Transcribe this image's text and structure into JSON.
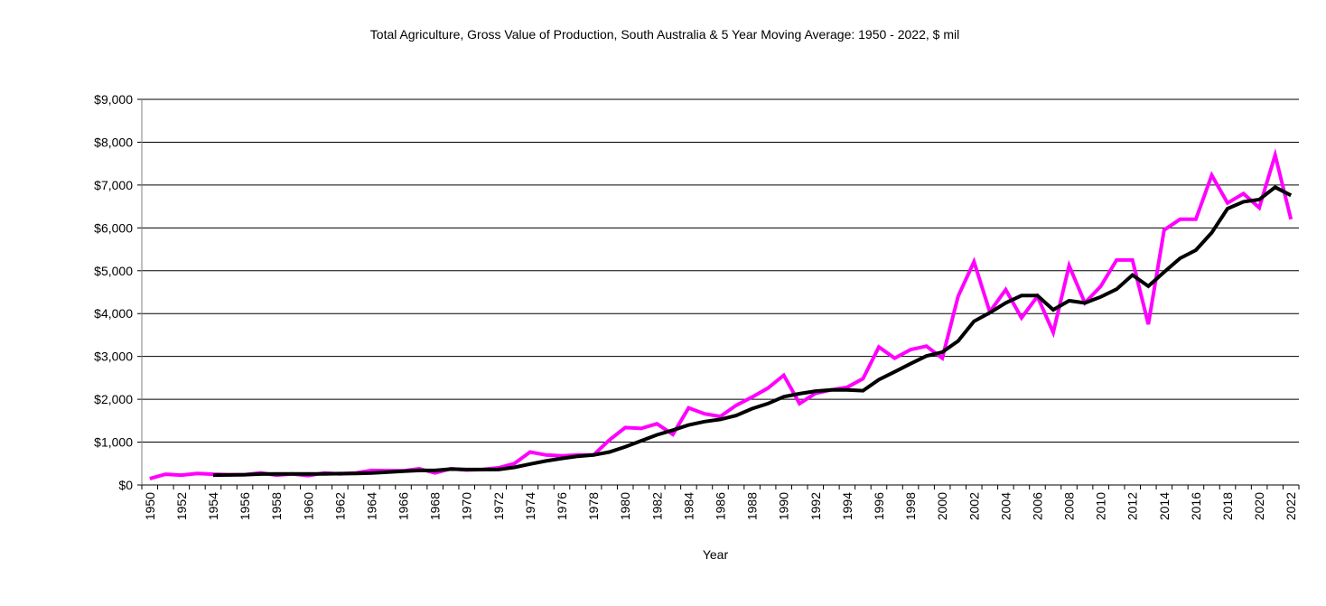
{
  "chart_data": {
    "type": "line",
    "title": "Total Agriculture, Gross Value of Production, South Australia & 5 Year Moving Average: 1950 - 2022, $ mil",
    "xlabel": "Year",
    "ylabel": "",
    "ylim": [
      0,
      9000
    ],
    "yticks": [
      0,
      1000,
      2000,
      3000,
      4000,
      5000,
      6000,
      7000,
      8000,
      9000
    ],
    "ytick_labels": [
      "$0",
      "$1,000",
      "$2,000",
      "$3,000",
      "$4,000",
      "$5,000",
      "$6,000",
      "$7,000",
      "$8,000",
      "$9,000"
    ],
    "xtick_labels": [
      "1950",
      "1952",
      "1954",
      "1956",
      "1958",
      "1960",
      "1962",
      "1964",
      "1966",
      "1968",
      "1970",
      "1972",
      "1974",
      "1976",
      "1978",
      "1980",
      "1982",
      "1984",
      "1986",
      "1988",
      "1990",
      "1992",
      "1994",
      "1996",
      "1998",
      "2000",
      "2002",
      "2004",
      "2006",
      "2008",
      "2010",
      "2012",
      "2014",
      "2016",
      "2018",
      "2020",
      "2022"
    ],
    "grid": true,
    "x_start": 1950,
    "x_end": 2022,
    "series": [
      {
        "name": "Gross Value of Production",
        "color": "#ff00ff",
        "start": 1950,
        "values": [
          150,
          250,
          230,
          270,
          250,
          240,
          240,
          280,
          230,
          260,
          220,
          280,
          260,
          280,
          340,
          330,
          330,
          380,
          280,
          380,
          350,
          360,
          400,
          500,
          770,
          700,
          680,
          700,
          700,
          1050,
          1340,
          1320,
          1430,
          1180,
          1800,
          1660,
          1600,
          1860,
          2050,
          2260,
          2560,
          1900,
          2140,
          2220,
          2280,
          2480,
          3220,
          2960,
          3160,
          3240,
          2960,
          4400,
          5210,
          4040,
          4560,
          3900,
          4400,
          3560,
          5120,
          4250,
          4640,
          5250,
          5250,
          3750,
          5950,
          6200,
          6200,
          7230,
          6580,
          6800,
          6470,
          7700,
          6200
        ]
      },
      {
        "name": "5 Year Moving Average",
        "color": "#000000",
        "start": 1954,
        "values": [
          230,
          235,
          240,
          255,
          260,
          260,
          260,
          260,
          265,
          270,
          280,
          300,
          320,
          340,
          340,
          370,
          360,
          360,
          360,
          410,
          490,
          560,
          620,
          670,
          700,
          770,
          890,
          1030,
          1170,
          1280,
          1400,
          1480,
          1530,
          1620,
          1780,
          1900,
          2060,
          2130,
          2190,
          2220,
          2220,
          2200,
          2460,
          2640,
          2830,
          3010,
          3100,
          3360,
          3820,
          4020,
          4250,
          4420,
          4420,
          4090,
          4300,
          4250,
          4390,
          4570,
          4900,
          4640,
          4970,
          5290,
          5480,
          5890,
          6450,
          6610,
          6660,
          6950,
          6760
        ]
      }
    ]
  }
}
